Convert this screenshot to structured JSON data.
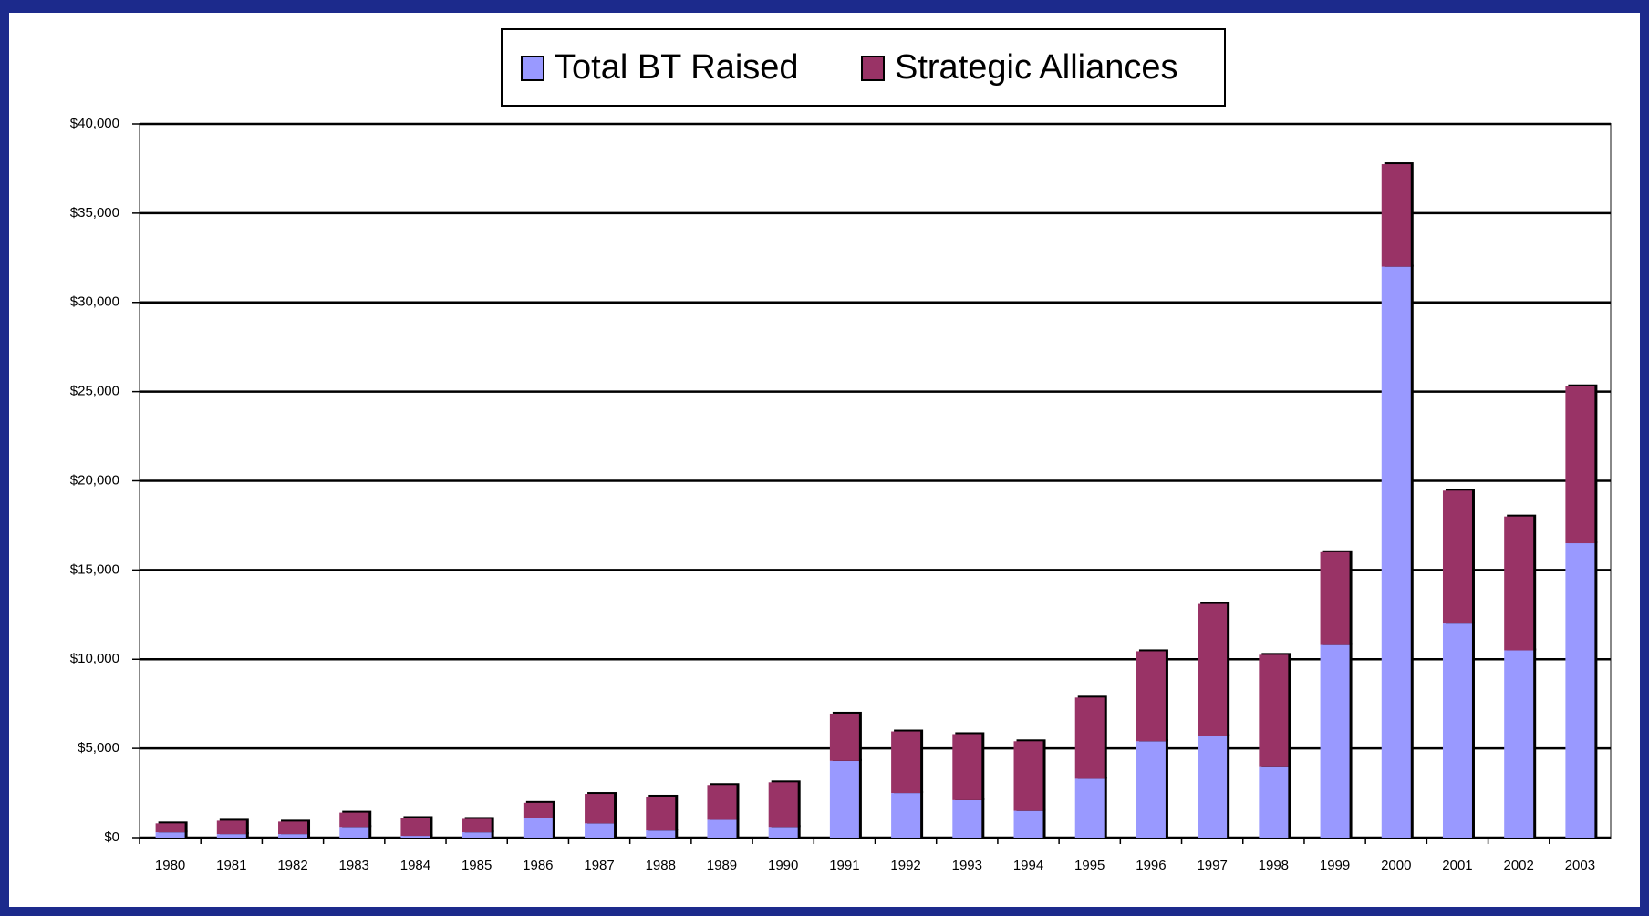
{
  "chart_data": {
    "type": "stacked_bar",
    "categories": [
      "1980",
      "1981",
      "1982",
      "1983",
      "1984",
      "1985",
      "1986",
      "1987",
      "1988",
      "1989",
      "1990",
      "1991",
      "1992",
      "1993",
      "1994",
      "1995",
      "1996",
      "1997",
      "1998",
      "1999",
      "2000",
      "2001",
      "2002",
      "2003"
    ],
    "series": [
      {
        "name": "Total BT Raised",
        "color": "#9999ff",
        "values": [
          300,
          200,
          200,
          600,
          100,
          300,
          1100,
          800,
          400,
          1000,
          600,
          4300,
          2500,
          2100,
          1500,
          3300,
          5400,
          5700,
          4000,
          10800,
          32000,
          12000,
          10500,
          16500
        ]
      },
      {
        "name": "Strategic Alliances",
        "color": "#993366",
        "values": [
          500,
          750,
          700,
          800,
          1000,
          750,
          850,
          1650,
          1900,
          1950,
          2500,
          2650,
          3450,
          3700,
          3900,
          4550,
          5050,
          7400,
          6250,
          5200,
          5750,
          7450,
          7500,
          8800
        ]
      }
    ],
    "ylim": [
      0,
      40000
    ],
    "yticks": [
      {
        "value": 0,
        "label": "$0"
      },
      {
        "value": 5000,
        "label": "$5,000"
      },
      {
        "value": 10000,
        "label": "$10,000"
      },
      {
        "value": 15000,
        "label": "$15,000"
      },
      {
        "value": 20000,
        "label": "$20,000"
      },
      {
        "value": 25000,
        "label": "$25,000"
      },
      {
        "value": 30000,
        "label": "$30,000"
      },
      {
        "value": 35000,
        "label": "$35,000"
      },
      {
        "value": 40000,
        "label": "$40,000"
      }
    ],
    "grid": true,
    "legend": "top"
  }
}
